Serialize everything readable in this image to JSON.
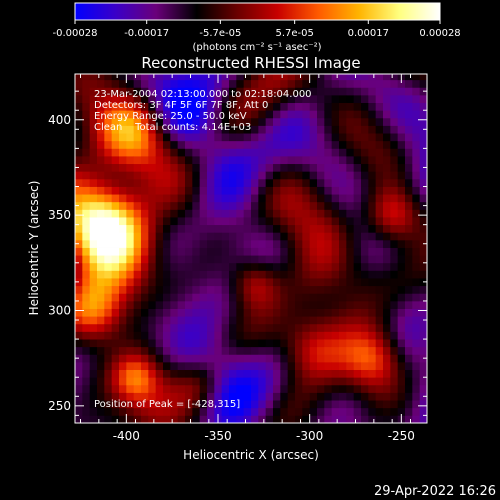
{
  "colorbar": {
    "tick_labels": [
      "-0.00028",
      "-0.00017",
      "-5.7e-05",
      "5.7e-05",
      "0.00017",
      "0.00028"
    ],
    "tick_values": [
      -0.00028,
      -0.00017,
      -5.7e-05,
      5.7e-05,
      0.00017,
      0.00028
    ],
    "range": [
      -0.00028,
      0.00028
    ],
    "unit_label": "(photons cm⁻² s⁻¹ asec⁻²)",
    "colors": [
      "#0000ff",
      "#3a00c8",
      "#6a007a",
      "#000000",
      "#6a0000",
      "#c80000",
      "#ff5a00",
      "#ffb400",
      "#ffff80",
      "#ffffff"
    ]
  },
  "chart_data": {
    "type": "heatmap",
    "title": "Reconstructed RHESSI Image",
    "xlabel": "Heliocentric X (arcsec)",
    "ylabel": "Heliocentric Y (arcsec)",
    "xlim": [
      -428,
      -236
    ],
    "ylim": [
      241,
      424
    ],
    "x_ticks": [
      -400,
      -350,
      -300,
      -250
    ],
    "y_ticks": [
      250,
      300,
      350,
      400
    ],
    "info_lines": [
      "23-Mar-2004 02:13:00.000 to 02:18:04.000",
      "Detectors: 3F 4F 5F 6F 7F 8F, Att 0",
      "Energy Range: 25.0 - 50.0 keV",
      "Clean    Total counts: 4.14E+03"
    ],
    "peak_label": "Position of Peak = [-428,315]",
    "peak": [
      -428,
      315
    ]
  },
  "footer": {
    "date": "29-Apr-2022 16:26"
  }
}
